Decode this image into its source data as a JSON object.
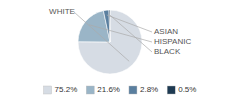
{
  "chart_data": {
    "type": "pie",
    "categories": [
      "WHITE",
      "HISPANIC",
      "ASIAN",
      "BLACK"
    ],
    "values": [
      75.2,
      21.6,
      2.8,
      0.5
    ],
    "value_labels": [
      "75.2%",
      "21.6%",
      "2.8%",
      "0.5%"
    ],
    "colors": [
      "#d6dce4",
      "#9ab5c7",
      "#5a7f9f",
      "#1e3a52"
    ],
    "legend": "bottom"
  }
}
